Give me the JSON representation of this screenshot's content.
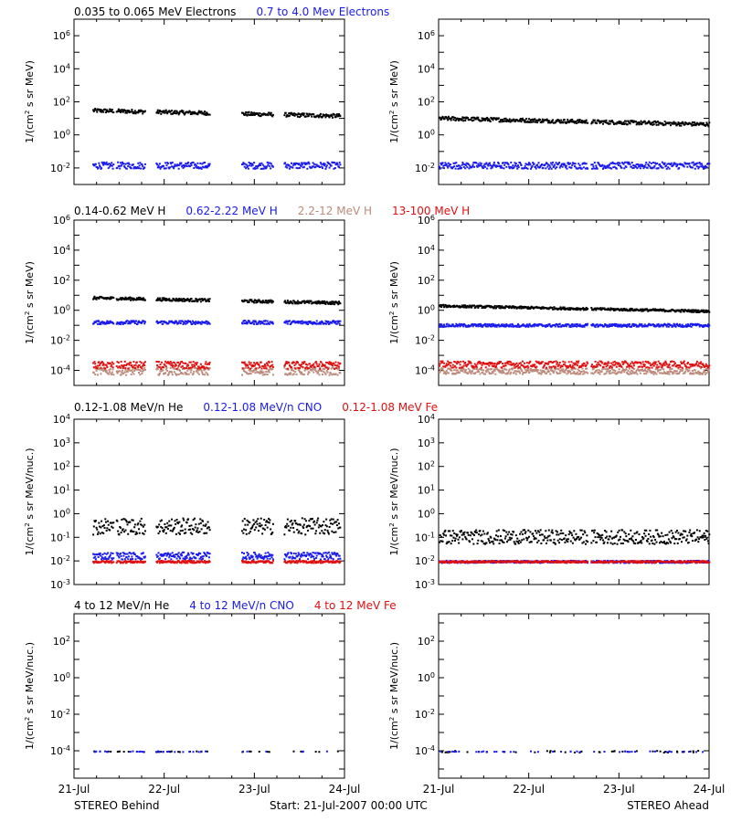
{
  "colors": {
    "black": "#000000",
    "blue": "#1a1aee",
    "tan": "#bc8a7a",
    "red": "#e01010"
  },
  "chart_data": {
    "type": "scatter",
    "x_tick_labels": [
      "21-Jul",
      "22-Jul",
      "23-Jul",
      "24-Jul"
    ],
    "x_range_days": [
      0,
      3
    ],
    "footer": {
      "left": "STEREO Behind",
      "center": "Start: 21-Jul-2007 00:00 UTC",
      "right": "STEREO Ahead"
    },
    "rows": [
      {
        "legend": [
          {
            "text": "0.035 to 0.065 MeV Electrons",
            "color": "black"
          },
          {
            "text": "0.7 to 4.0 Mev Electrons",
            "color": "blue"
          }
        ],
        "ylabel_html": "1/(cm<tspan baseline-shift=\"super\" font-size=\"7\">2</tspan> s sr MeV)",
        "ylog": [
          -3,
          7
        ],
        "yticks": [
          {
            "exp": -2,
            "label": "10",
            "sup": "-2"
          },
          {
            "exp": 0,
            "label": "10",
            "sup": "0"
          },
          {
            "exp": 2,
            "label": "10",
            "sup": "2"
          },
          {
            "exp": 4,
            "label": "10",
            "sup": "4"
          },
          {
            "exp": 6,
            "label": "10",
            "sup": "6"
          }
        ],
        "panels": {
          "behind": [
            {
              "color": "black",
              "level": 1.55,
              "spread": 0.12
            },
            {
              "color": "blue",
              "level": -1.8,
              "spread": 0.2
            }
          ],
          "ahead": [
            {
              "color": "black",
              "level": 1.05,
              "spread": 0.12
            },
            {
              "color": "blue",
              "level": -1.8,
              "spread": 0.2
            }
          ]
        }
      },
      {
        "legend": [
          {
            "text": "0.14-0.62 MeV H",
            "color": "black"
          },
          {
            "text": "0.62-2.22 MeV H",
            "color": "blue"
          },
          {
            "text": "2.2-12 MeV H",
            "color": "tan"
          },
          {
            "text": "13-100 MeV H",
            "color": "red"
          }
        ],
        "ylabel_html": "1/(cm<tspan baseline-shift=\"super\" font-size=\"7\">2</tspan> s sr MeV)",
        "ylog": [
          -5,
          6
        ],
        "yticks": [
          {
            "exp": -4,
            "label": "10",
            "sup": "-4"
          },
          {
            "exp": -2,
            "label": "10",
            "sup": "-2"
          },
          {
            "exp": 0,
            "label": "10",
            "sup": "0"
          },
          {
            "exp": 2,
            "label": "10",
            "sup": "2"
          },
          {
            "exp": 4,
            "label": "10",
            "sup": "4"
          },
          {
            "exp": 6,
            "label": "10",
            "sup": "6"
          }
        ],
        "panels": {
          "behind": [
            {
              "color": "black",
              "level": 0.9,
              "spread": 0.1
            },
            {
              "color": "blue",
              "level": -0.75,
              "spread": 0.12
            },
            {
              "color": "tan",
              "level": -4.0,
              "spread": 0.25
            },
            {
              "color": "red",
              "level": -3.6,
              "spread": 0.25
            }
          ],
          "ahead": [
            {
              "color": "black",
              "level": 0.35,
              "spread": 0.08
            },
            {
              "color": "blue",
              "level": -0.95,
              "spread": 0.1
            },
            {
              "color": "tan",
              "level": -4.0,
              "spread": 0.2
            },
            {
              "color": "red",
              "level": -3.55,
              "spread": 0.22
            }
          ]
        }
      },
      {
        "legend": [
          {
            "text": "0.12-1.08 MeV/n He",
            "color": "black"
          },
          {
            "text": "0.12-1.08 MeV/n CNO",
            "color": "blue"
          },
          {
            "text": "0.12-1.08 MeV Fe",
            "color": "red"
          }
        ],
        "ylabel_html": "1/(cm<tspan baseline-shift=\"super\" font-size=\"7\">2</tspan> s sr MeV/nuc.)",
        "ylog": [
          -3,
          4
        ],
        "yticks": [
          {
            "exp": -3,
            "label": "10",
            "sup": "-3"
          },
          {
            "exp": -2,
            "label": "10",
            "sup": "-2"
          },
          {
            "exp": -1,
            "label": "10",
            "sup": "-1"
          },
          {
            "exp": 0,
            "label": "10",
            "sup": "0"
          },
          {
            "exp": 1,
            "label": "10",
            "sup": "1"
          },
          {
            "exp": 2,
            "label": "10",
            "sup": "2"
          },
          {
            "exp": 3,
            "label": "10",
            "sup": "3"
          },
          {
            "exp": 4,
            "label": "10",
            "sup": "4"
          }
        ],
        "panels": {
          "behind": [
            {
              "color": "black",
              "level": -0.5,
              "spread": 0.35
            },
            {
              "color": "blue",
              "level": -1.75,
              "spread": 0.15
            },
            {
              "color": "red",
              "level": -2.0,
              "spread": 0.05
            }
          ],
          "ahead": [
            {
              "color": "black",
              "level": -0.95,
              "spread": 0.3
            },
            {
              "color": "blue",
              "level": -2.0,
              "spread": 0.05
            },
            {
              "color": "red",
              "level": -2.0,
              "spread": 0.04
            }
          ]
        }
      },
      {
        "legend": [
          {
            "text": "4 to 12 MeV/n He",
            "color": "black"
          },
          {
            "text": "4 to 12 MeV/n CNO",
            "color": "blue"
          },
          {
            "text": "4 to 12 MeV Fe",
            "color": "red"
          }
        ],
        "ylabel_html": "1/(cm<tspan baseline-shift=\"super\" font-size=\"7\">2</tspan> s sr MeV/nuc.)",
        "ylog": [
          -5.5,
          3.5
        ],
        "yticks": [
          {
            "exp": -4,
            "label": "10",
            "sup": "-4"
          },
          {
            "exp": -2,
            "label": "10",
            "sup": "-2"
          },
          {
            "exp": 0,
            "label": "10",
            "sup": "0"
          },
          {
            "exp": 2,
            "label": "10",
            "sup": "2"
          }
        ],
        "panels": {
          "behind": [
            {
              "color": "black",
              "level": -4.0,
              "spread": 0.02,
              "sparse": true
            },
            {
              "color": "blue",
              "level": -4.0,
              "spread": 0.02,
              "sparse": true
            }
          ],
          "ahead": [
            {
              "color": "black",
              "level": -4.0,
              "spread": 0.05,
              "sparse": true
            },
            {
              "color": "blue",
              "level": -4.0,
              "spread": 0.02,
              "sparse": true
            }
          ]
        }
      }
    ],
    "gaps": {
      "behind": [
        [
          0.0,
          0.2
        ],
        [
          0.43,
          0.46
        ],
        [
          0.78,
          0.9
        ],
        [
          1.5,
          1.85
        ],
        [
          2.2,
          2.32
        ]
      ],
      "ahead": [
        [
          1.65,
          1.68
        ]
      ]
    }
  }
}
